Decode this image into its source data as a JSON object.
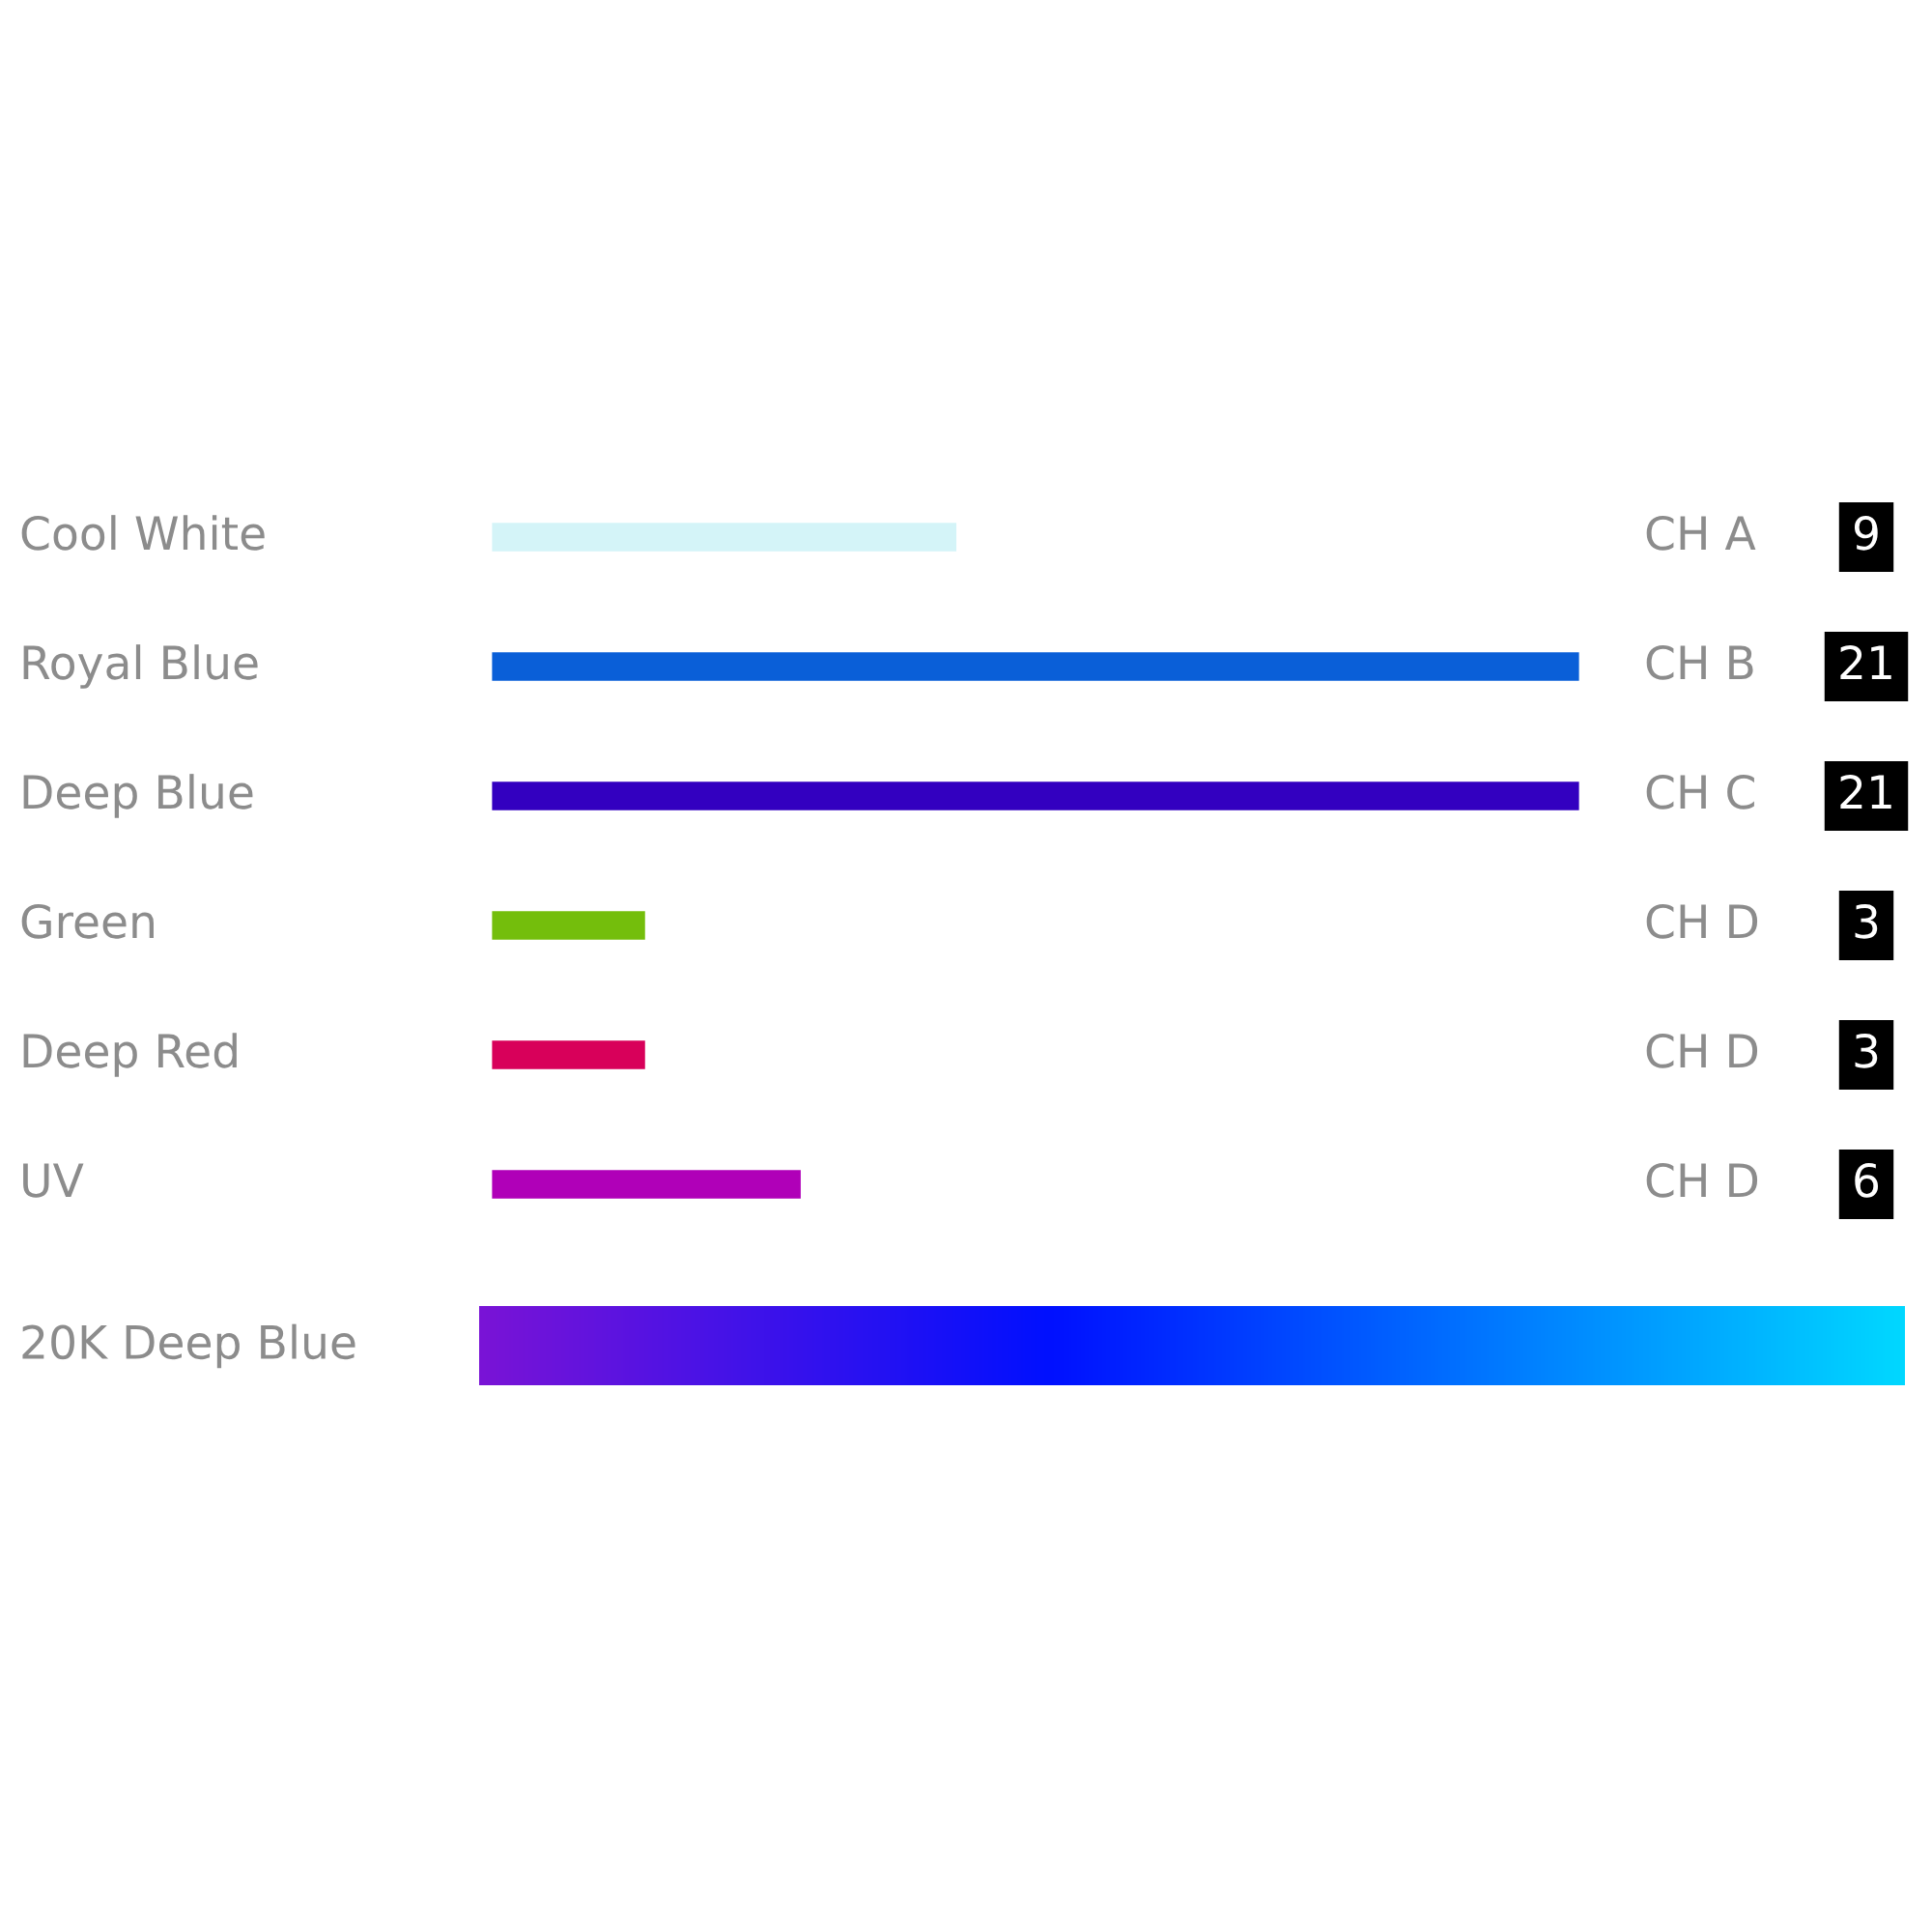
{
  "chart_data": {
    "type": "bar",
    "orientation": "horizontal",
    "categories": [
      "Cool White",
      "Royal Blue",
      "Deep Blue",
      "Green",
      "Deep Red",
      "UV"
    ],
    "values": [
      9,
      21,
      21,
      3,
      3,
      6
    ],
    "colors": [
      "#d4f4f8",
      "#0a5fd8",
      "#3300c0",
      "#74be0c",
      "#d8005a",
      "#b000b8"
    ],
    "data_labels": true,
    "tick_labels": false,
    "annotations": [
      "CH A",
      "CH B",
      "CH C",
      "CH D",
      "CH D",
      "CH D",
      "20K Deep Blue"
    ]
  }
}
